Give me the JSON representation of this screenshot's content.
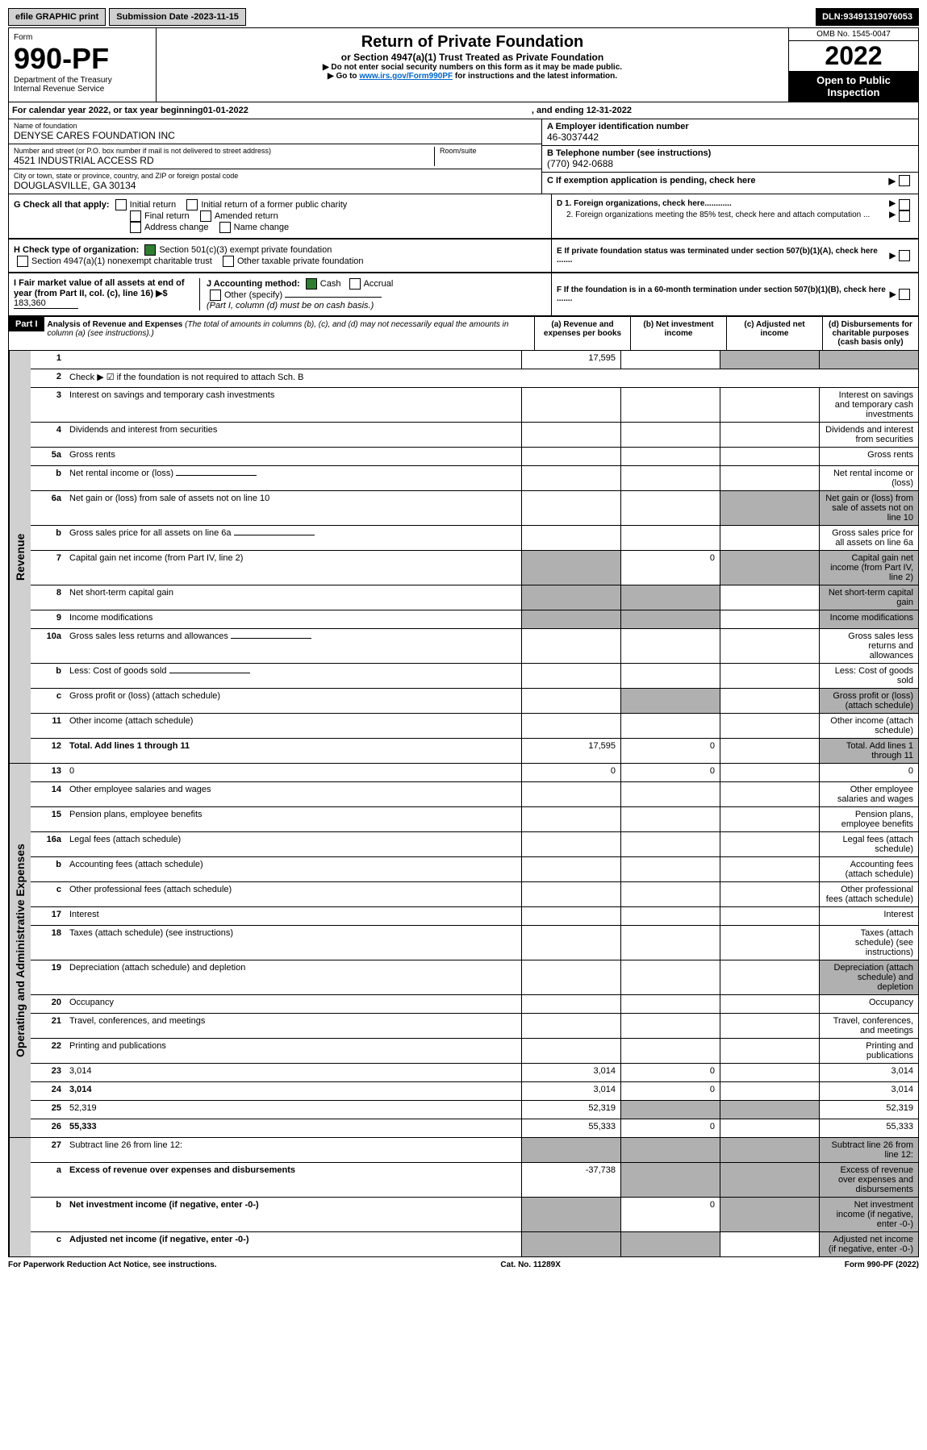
{
  "topbar": {
    "efile": "efile GRAPHIC print",
    "subdate_lbl": "Submission Date - ",
    "subdate": "2023-11-15",
    "dln_lbl": "DLN: ",
    "dln": "93491319076053"
  },
  "form": {
    "form_word": "Form",
    "number": "990-PF",
    "dept": "Department of the Treasury",
    "irs": "Internal Revenue Service",
    "title": "Return of Private Foundation",
    "subtitle": "or Section 4947(a)(1) Trust Treated as Private Foundation",
    "instr1": "▶ Do not enter social security numbers on this form as it may be made public.",
    "instr2_pre": "▶ Go to ",
    "instr2_link": "www.irs.gov/Form990PF",
    "instr2_post": " for instructions and the latest information.",
    "omb": "OMB No. 1545-0047",
    "year": "2022",
    "inspection": "Open to Public Inspection"
  },
  "cal": {
    "text": "For calendar year 2022, or tax year beginning ",
    "begin": "01-01-2022",
    "mid": ", and ending ",
    "end": "12-31-2022"
  },
  "entity": {
    "name_lbl": "Name of foundation",
    "name": "DENYSE CARES FOUNDATION INC",
    "addr_lbl": "Number and street (or P.O. box number if mail is not delivered to street address)",
    "room_lbl": "Room/suite",
    "addr": "4521 INDUSTRIAL ACCESS RD",
    "city_lbl": "City or town, state or province, country, and ZIP or foreign postal code",
    "city": "DOUGLASVILLE, GA  30134",
    "ein_lbl": "A Employer identification number",
    "ein": "46-3037442",
    "tel_lbl": "B Telephone number (see instructions)",
    "tel": "(770) 942-0688",
    "c": "C If exemption application is pending, check here",
    "d1": "D 1. Foreign organizations, check here............",
    "d2": "2. Foreign organizations meeting the 85% test, check here and attach computation ...",
    "e": "E If private foundation status was terminated under section 507(b)(1)(A), check here .......",
    "f": "F If the foundation is in a 60-month termination under section 507(b)(1)(B), check here ......."
  },
  "g": {
    "label": "G Check all that apply:",
    "initial": "Initial return",
    "initial_pub": "Initial return of a former public charity",
    "final": "Final return",
    "amended": "Amended return",
    "addr": "Address change",
    "name": "Name change"
  },
  "h": {
    "label": "H Check type of organization:",
    "s501": "Section 501(c)(3) exempt private foundation",
    "s4947": "Section 4947(a)(1) nonexempt charitable trust",
    "other": "Other taxable private foundation"
  },
  "i": {
    "label": "I Fair market value of all assets at end of year (from Part II, col. (c), line 16)",
    "arrow": "▶$",
    "value": " 183,360"
  },
  "j": {
    "label": "J Accounting method:",
    "cash": "Cash",
    "accrual": "Accrual",
    "other": "Other (specify)",
    "note": "(Part I, column (d) must be on cash basis.)"
  },
  "part1": {
    "label": "Part I",
    "title": "Analysis of Revenue and Expenses",
    "note": " (The total of amounts in columns (b), (c), and (d) may not necessarily equal the amounts in column (a) (see instructions).)",
    "col_a": "(a) Revenue and expenses per books",
    "col_b": "(b) Net investment income",
    "col_c": "(c) Adjusted net income",
    "col_d": "(d) Disbursements for charitable purposes (cash basis only)"
  },
  "rev_label": "Revenue",
  "exp_label": "Operating and Administrative Expenses",
  "lines": {
    "l1": {
      "n": "1",
      "d": "",
      "a": "17,595",
      "b": "",
      "c": "",
      "sc": true,
      "sd": true
    },
    "l2": {
      "n": "2",
      "d": "Check ▶ ☑ if the foundation is not required to attach Sch. B",
      "nobox": true
    },
    "l3": {
      "n": "3",
      "d": "Interest on savings and temporary cash investments"
    },
    "l4": {
      "n": "4",
      "d": "Dividends and interest from securities"
    },
    "l5a": {
      "n": "5a",
      "d": "Gross rents"
    },
    "l5b": {
      "n": "b",
      "d": "Net rental income or (loss)",
      "inline": true
    },
    "l6a": {
      "n": "6a",
      "d": "Net gain or (loss) from sale of assets not on line 10",
      "sc": true,
      "sd": true
    },
    "l6b": {
      "n": "b",
      "d": "Gross sales price for all assets on line 6a",
      "inline": true
    },
    "l7": {
      "n": "7",
      "d": "Capital gain net income (from Part IV, line 2)",
      "b": "0",
      "sa": true,
      "sc": true,
      "sd": true
    },
    "l8": {
      "n": "8",
      "d": "Net short-term capital gain",
      "sa": true,
      "sb": true,
      "sd": true
    },
    "l9": {
      "n": "9",
      "d": "Income modifications",
      "sa": true,
      "sb": true,
      "sd": true
    },
    "l10a": {
      "n": "10a",
      "d": "Gross sales less returns and allowances",
      "inline": true
    },
    "l10b": {
      "n": "b",
      "d": "Less: Cost of goods sold",
      "inline": true
    },
    "l10c": {
      "n": "c",
      "d": "Gross profit or (loss) (attach schedule)",
      "sb": true,
      "sd": true
    },
    "l11": {
      "n": "11",
      "d": "Other income (attach schedule)"
    },
    "l12": {
      "n": "12",
      "d": "Total. Add lines 1 through 11",
      "a": "17,595",
      "b": "0",
      "bold": true,
      "sd": true
    },
    "l13": {
      "n": "13",
      "d": "0",
      "a": "0",
      "b": "0"
    },
    "l14": {
      "n": "14",
      "d": "Other employee salaries and wages"
    },
    "l15": {
      "n": "15",
      "d": "Pension plans, employee benefits"
    },
    "l16a": {
      "n": "16a",
      "d": "Legal fees (attach schedule)"
    },
    "l16b": {
      "n": "b",
      "d": "Accounting fees (attach schedule)"
    },
    "l16c": {
      "n": "c",
      "d": "Other professional fees (attach schedule)"
    },
    "l17": {
      "n": "17",
      "d": "Interest"
    },
    "l18": {
      "n": "18",
      "d": "Taxes (attach schedule) (see instructions)"
    },
    "l19": {
      "n": "19",
      "d": "Depreciation (attach schedule) and depletion",
      "sd": true
    },
    "l20": {
      "n": "20",
      "d": "Occupancy"
    },
    "l21": {
      "n": "21",
      "d": "Travel, conferences, and meetings"
    },
    "l22": {
      "n": "22",
      "d": "Printing and publications"
    },
    "l23": {
      "n": "23",
      "d": "3,014",
      "a": "3,014",
      "b": "0"
    },
    "l24": {
      "n": "24",
      "d": "3,014",
      "a": "3,014",
      "b": "0",
      "bold": true
    },
    "l25": {
      "n": "25",
      "d": "52,319",
      "a": "52,319",
      "sb": true,
      "sc": true
    },
    "l26": {
      "n": "26",
      "d": "55,333",
      "a": "55,333",
      "b": "0",
      "bold": true
    },
    "l27": {
      "n": "27",
      "d": "Subtract line 26 from line 12:",
      "sa": true,
      "sb": true,
      "sc": true,
      "sd": true
    },
    "l27a": {
      "n": "a",
      "d": "Excess of revenue over expenses and disbursements",
      "a": "-37,738",
      "bold": true,
      "sb": true,
      "sc": true,
      "sd": true
    },
    "l27b": {
      "n": "b",
      "d": "Net investment income (if negative, enter -0-)",
      "b": "0",
      "bold": true,
      "sa": true,
      "sc": true,
      "sd": true
    },
    "l27c": {
      "n": "c",
      "d": "Adjusted net income (if negative, enter -0-)",
      "bold": true,
      "sa": true,
      "sb": true,
      "sd": true
    }
  },
  "footer": {
    "left": "For Paperwork Reduction Act Notice, see instructions.",
    "cat": "Cat. No. 11289X",
    "right": "Form 990-PF (2022)"
  }
}
